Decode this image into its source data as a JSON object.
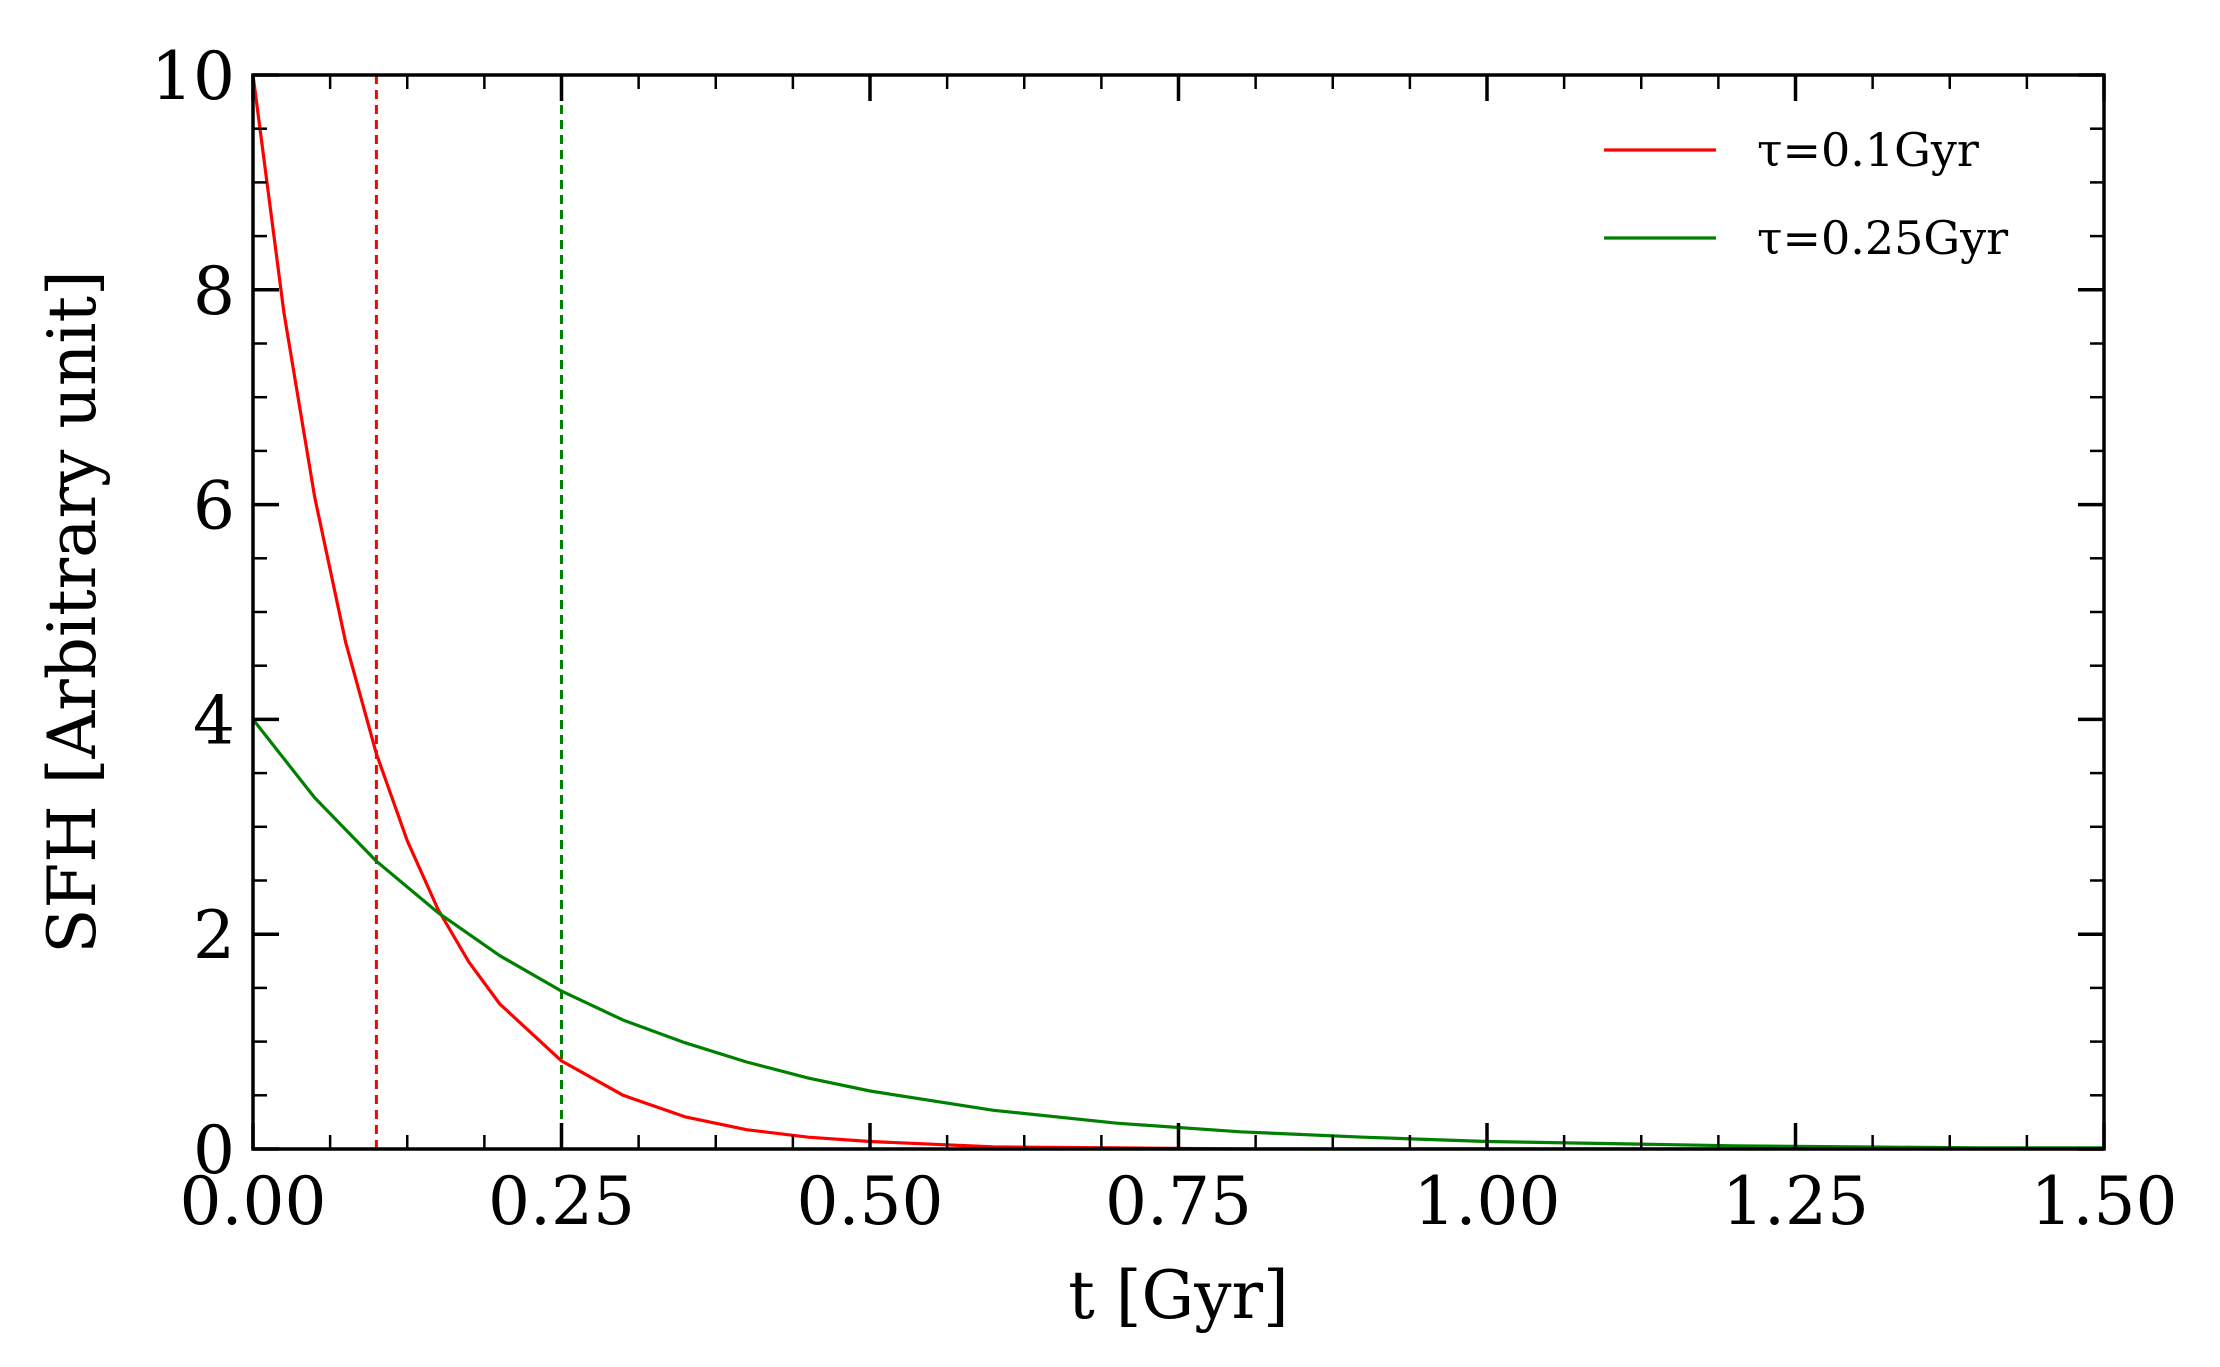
{
  "chart_data": {
    "type": "line",
    "xlabel": "t [Gyr]",
    "ylabel": "SFH [Arbitrary unit]",
    "xlim": [
      0,
      1.5
    ],
    "ylim": [
      0,
      10
    ],
    "xticks": [
      0,
      0.25,
      0.5,
      0.75,
      1.0,
      1.25,
      1.5
    ],
    "xtick_labels": [
      "0.00",
      "0.25",
      "0.50",
      "0.75",
      "1.00",
      "1.25",
      "1.50"
    ],
    "yticks": [
      0,
      2,
      4,
      6,
      8,
      10
    ],
    "ytick_labels": [
      "0",
      "2",
      "4",
      "6",
      "8",
      "10"
    ],
    "grid": false,
    "legend_position": "top-right",
    "series": [
      {
        "name": "τ=0.1Gyr",
        "color": "#ff0000",
        "x": [
          0,
          0.025,
          0.05,
          0.075,
          0.1,
          0.125,
          0.15,
          0.175,
          0.2,
          0.25,
          0.3,
          0.35,
          0.4,
          0.45,
          0.5,
          0.6,
          0.7,
          0.8,
          0.9,
          1.0,
          1.1,
          1.2,
          1.3,
          1.4,
          1.5
        ],
        "y": [
          10,
          7.79,
          6.07,
          4.72,
          3.68,
          2.87,
          2.23,
          1.74,
          1.35,
          0.82,
          0.5,
          0.3,
          0.18,
          0.11,
          0.07,
          0.02,
          0.01,
          0,
          0,
          0,
          0,
          0,
          0,
          0,
          0
        ]
      },
      {
        "name": "τ=0.25Gyr",
        "color": "#008000",
        "x": [
          0,
          0.05,
          0.1,
          0.15,
          0.2,
          0.25,
          0.3,
          0.35,
          0.4,
          0.45,
          0.5,
          0.6,
          0.7,
          0.8,
          0.9,
          1.0,
          1.1,
          1.2,
          1.3,
          1.4,
          1.5
        ],
        "y": [
          4,
          3.27,
          2.68,
          2.2,
          1.8,
          1.47,
          1.2,
          0.99,
          0.81,
          0.66,
          0.54,
          0.36,
          0.24,
          0.16,
          0.11,
          0.07,
          0.05,
          0.03,
          0.02,
          0.01,
          0.01
        ]
      }
    ],
    "vlines": [
      {
        "x": 0.1,
        "color": "#ff0000",
        "style": "dashed"
      },
      {
        "x": 0.25,
        "color": "#008000",
        "style": "dashed"
      }
    ]
  }
}
